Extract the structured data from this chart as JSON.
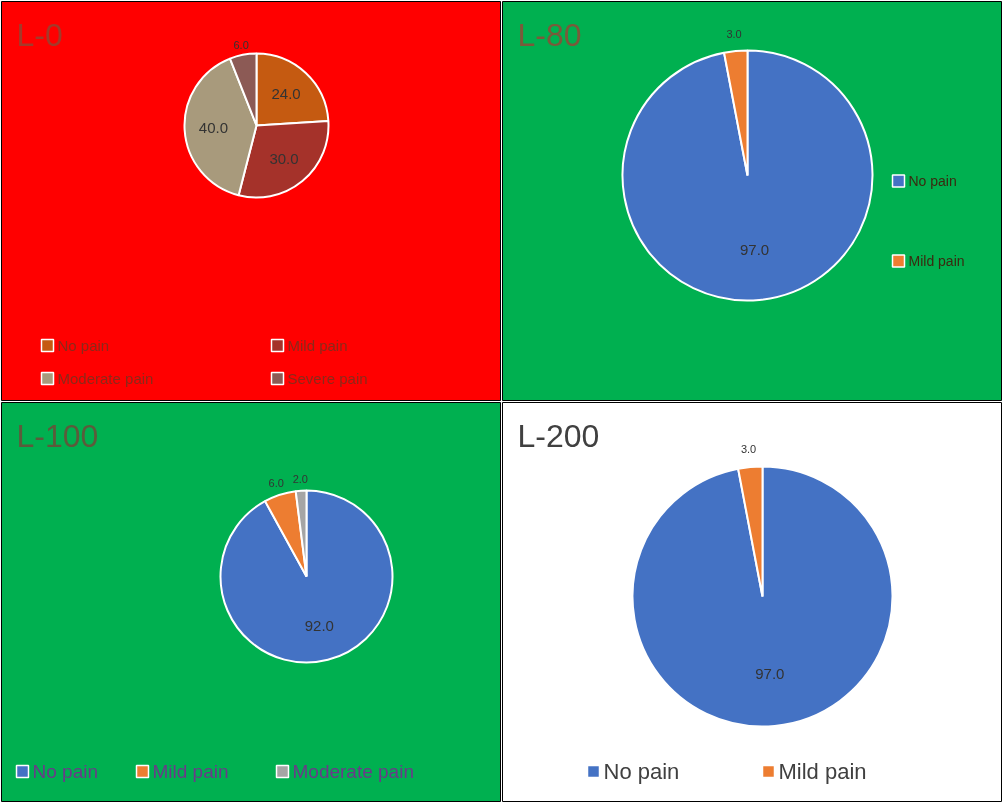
{
  "chart_data": [
    {
      "type": "pie",
      "title": "L-0",
      "categories": [
        "No pain",
        "Mild pain",
        "Moderate pain",
        "Severe pain"
      ],
      "values": [
        24,
        30,
        40,
        6
      ],
      "colors": [
        "#c55a11",
        "#a5322a",
        "#a89a7c",
        "#8c5a55"
      ],
      "value_labels": [
        "24.0",
        "30.0",
        "40.0",
        "6.0"
      ],
      "legend": "bottom"
    },
    {
      "type": "pie",
      "title": "L-80",
      "categories": [
        "No pain",
        "Mild pain"
      ],
      "values": [
        97,
        3
      ],
      "colors": [
        "#4472c4",
        "#ed7d31"
      ],
      "value_labels": [
        "97.0",
        "3.0"
      ],
      "legend": "right"
    },
    {
      "type": "pie",
      "title": "L-100",
      "categories": [
        "No pain",
        "Mild pain",
        "Moderate pain"
      ],
      "values": [
        92,
        6,
        2
      ],
      "colors": [
        "#4472c4",
        "#ed7d31",
        "#a5a5a5"
      ],
      "value_labels": [
        "92.0",
        "6.0",
        "2.0"
      ],
      "legend": "bottom"
    },
    {
      "type": "pie",
      "title": "L-200",
      "categories": [
        "No pain",
        "Mild pain"
      ],
      "values": [
        97,
        3
      ],
      "colors": [
        "#4472c4",
        "#ed7d31"
      ],
      "value_labels": [
        "97.0",
        "3.0"
      ],
      "legend": "bottom"
    }
  ]
}
